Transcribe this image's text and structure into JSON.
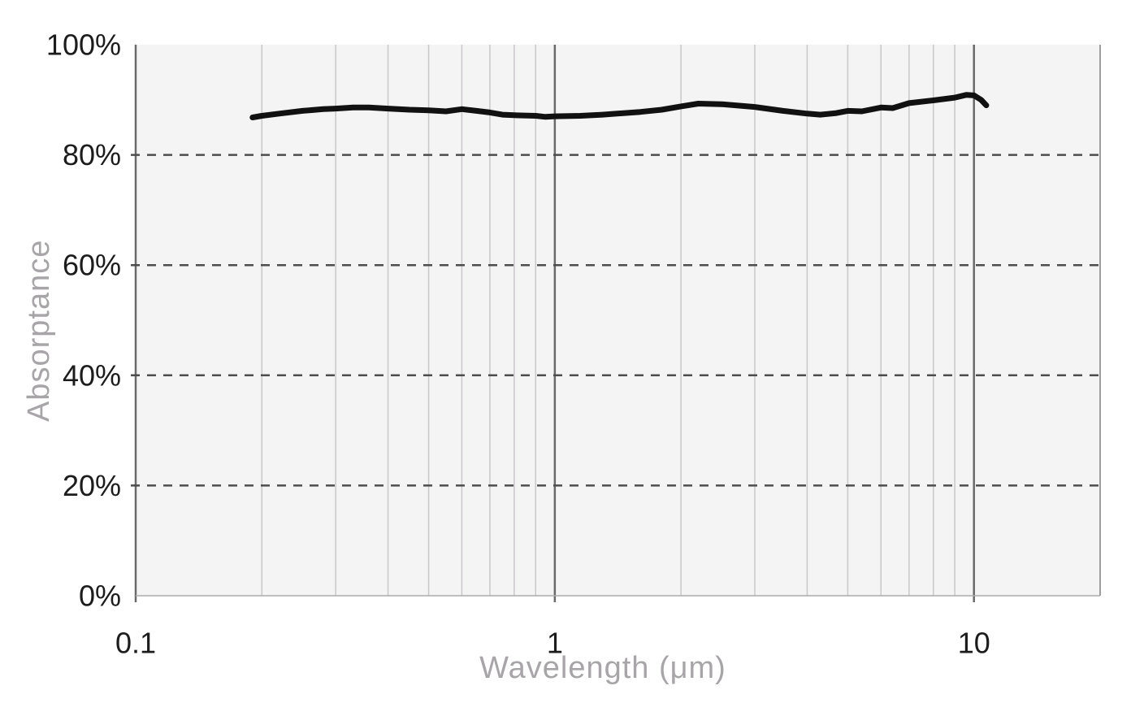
{
  "chart_data": {
    "type": "line",
    "title": "",
    "xlabel": "Wavelength (μm)",
    "ylabel": "Absorptance",
    "x_scale": "log",
    "xlim": [
      0.1,
      20
    ],
    "ylim": [
      0,
      100
    ],
    "grid": true,
    "legend": "none",
    "x_ticks": [
      {
        "value": 0.1,
        "label": "0.1"
      },
      {
        "value": 1,
        "label": "1"
      },
      {
        "value": 10,
        "label": "10"
      }
    ],
    "x_minor_gridlines": [
      0.2,
      0.3,
      0.4,
      0.5,
      0.6,
      0.7,
      0.8,
      0.9,
      2,
      3,
      4,
      5,
      6,
      7,
      8,
      9
    ],
    "y_ticks": [
      {
        "value": 0,
        "label": "0%"
      },
      {
        "value": 20,
        "label": "20%"
      },
      {
        "value": 40,
        "label": "40%"
      },
      {
        "value": 60,
        "label": "60%"
      },
      {
        "value": 80,
        "label": "80%"
      },
      {
        "value": 100,
        "label": "100%"
      }
    ],
    "y_dashed_gridlines": [
      20,
      40,
      60,
      80
    ],
    "series": [
      {
        "name": "absorptance",
        "color": "#111111",
        "stroke_width": 7,
        "points": [
          [
            0.19,
            86.8
          ],
          [
            0.2,
            87.1
          ],
          [
            0.22,
            87.5
          ],
          [
            0.25,
            88.0
          ],
          [
            0.28,
            88.3
          ],
          [
            0.3,
            88.4
          ],
          [
            0.33,
            88.6
          ],
          [
            0.36,
            88.6
          ],
          [
            0.4,
            88.4
          ],
          [
            0.45,
            88.2
          ],
          [
            0.5,
            88.1
          ],
          [
            0.55,
            87.9
          ],
          [
            0.6,
            88.3
          ],
          [
            0.65,
            88.0
          ],
          [
            0.7,
            87.7
          ],
          [
            0.75,
            87.3
          ],
          [
            0.8,
            87.2
          ],
          [
            0.9,
            87.1
          ],
          [
            0.95,
            86.9
          ],
          [
            1.0,
            87.0
          ],
          [
            1.15,
            87.1
          ],
          [
            1.3,
            87.3
          ],
          [
            1.6,
            87.8
          ],
          [
            1.8,
            88.2
          ],
          [
            2.0,
            88.8
          ],
          [
            2.2,
            89.3
          ],
          [
            2.5,
            89.2
          ],
          [
            3.0,
            88.7
          ],
          [
            3.5,
            88.0
          ],
          [
            4.0,
            87.5
          ],
          [
            4.3,
            87.3
          ],
          [
            4.7,
            87.6
          ],
          [
            5.0,
            88.0
          ],
          [
            5.4,
            87.9
          ],
          [
            6.0,
            88.6
          ],
          [
            6.4,
            88.5
          ],
          [
            7.0,
            89.4
          ],
          [
            8.0,
            89.9
          ],
          [
            9.0,
            90.4
          ],
          [
            9.6,
            90.9
          ],
          [
            10.0,
            90.8
          ],
          [
            10.4,
            90.0
          ],
          [
            10.7,
            89.0
          ]
        ]
      }
    ],
    "colors": {
      "page_bg": "#ffffff",
      "plot_bg": "#f5f4f5",
      "grid_minor": "#c9c7c9",
      "grid_major": "#6a6a6a",
      "right_edge": "#9e9e9e",
      "bottom_edge": "#ababab",
      "dashed_grid": "#4d4d4d",
      "tick_label": "#1c1c1c",
      "axis_title": "#a7a5a7"
    }
  }
}
